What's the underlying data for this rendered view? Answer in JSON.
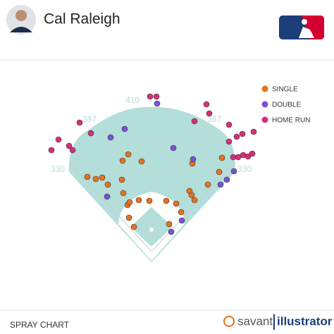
{
  "header": {
    "player": "Cal Raleigh"
  },
  "footer": {
    "label": "SPRAY CHART",
    "brand": "savant",
    "brand_suffix": "illustrator"
  },
  "field": {
    "labels": [
      "410",
      "387",
      "387",
      "330",
      "330"
    ]
  },
  "chart_data": {
    "type": "scatter",
    "series": [
      {
        "name": "SINGLE",
        "color": "#e8711c",
        "x": [
          -182,
          -158,
          -140,
          -124,
          -82,
          -66,
          -84,
          -80,
          -68,
          -62,
          -28,
          -36,
          -6,
          -64,
          -50,
          42,
          70,
          84,
          108,
          114,
          122,
          116,
          160,
          200,
          192,
          50
        ],
        "values": [
          212,
          206,
          210,
          190,
          258,
          276,
          204,
          166,
          132,
          140,
          256,
          146,
          144,
          96,
          70,
          144,
          136,
          112,
          172,
          160,
          146,
          250,
          190,
          266,
          226,
          78
        ]
      },
      {
        "name": "DOUBLE",
        "color": "#7b52d6",
        "x": [
          -76,
          -116,
          62,
          118,
          -126,
          86,
          56,
          16,
          196,
          214,
          234
        ],
        "values": [
          348,
          324,
          294,
          262,
          156,
          88,
          56,
          420,
          190,
          204,
          228
        ]
      },
      {
        "name": "HOME RUN",
        "color": "#d6307a",
        "x": [
          -4,
          14,
          156,
          164,
          122,
          -172,
          -204,
          -264,
          -234,
          -224,
          -284,
          220,
          258,
          290,
          242,
          220,
          232,
          246,
          260,
          274,
          286
        ],
        "values": [
          440,
          440,
          418,
          392,
          370,
          336,
          366,
          318,
          300,
          288,
          288,
          360,
          334,
          340,
          326,
          312,
          268,
          268,
          274,
          270,
          278
        ]
      }
    ]
  }
}
